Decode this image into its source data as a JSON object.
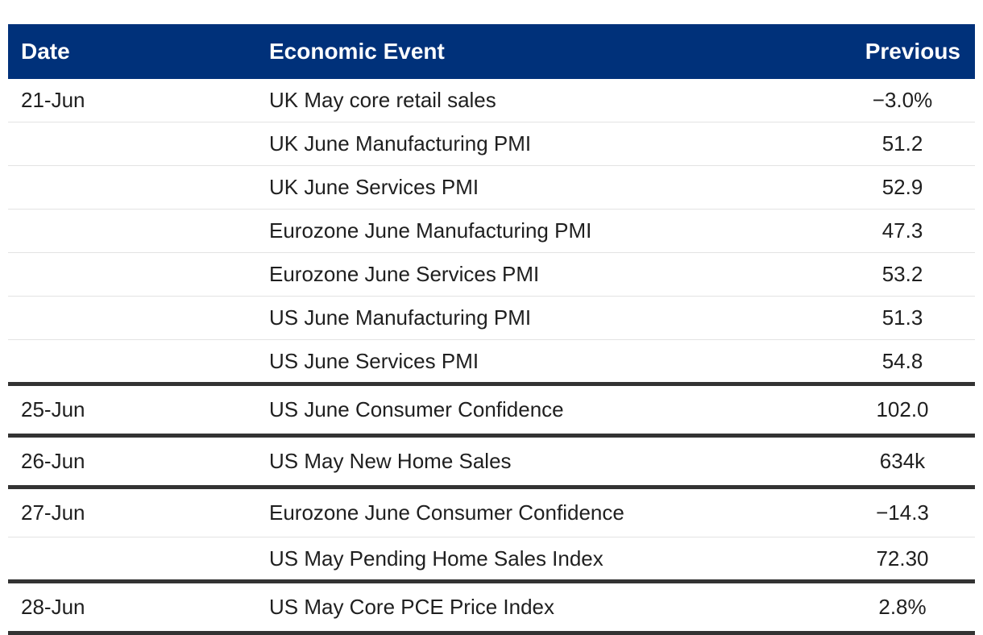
{
  "table": {
    "headers": {
      "date": "Date",
      "event": "Economic Event",
      "previous": "Previous"
    },
    "groups": [
      {
        "date": "21-Jun",
        "rows": [
          {
            "event": "UK May core retail sales",
            "previous": "−3.0%"
          },
          {
            "event": "UK June Manufacturing PMI",
            "previous": "51.2"
          },
          {
            "event": "UK June Services PMI",
            "previous": "52.9"
          },
          {
            "event": "Eurozone June Manufacturing PMI",
            "previous": "47.3"
          },
          {
            "event": "Eurozone June Services PMI",
            "previous": "53.2"
          },
          {
            "event": "US June Manufacturing PMI",
            "previous": "51.3"
          },
          {
            "event": "US June Services PMI",
            "previous": "54.8"
          }
        ]
      },
      {
        "date": "25-Jun",
        "rows": [
          {
            "event": "US June Consumer Confidence",
            "previous": "102.0"
          }
        ]
      },
      {
        "date": "26-Jun",
        "rows": [
          {
            "event": "US May New Home Sales",
            "previous": "634k"
          }
        ]
      },
      {
        "date": "27-Jun",
        "rows": [
          {
            "event": "Eurozone June Consumer Confidence",
            "previous": "−14.3"
          },
          {
            "event": "US May Pending Home Sales Index",
            "previous": "72.30"
          }
        ]
      },
      {
        "date": "28-Jun",
        "rows": [
          {
            "event": "US May Core PCE Price Index",
            "previous": "2.8%"
          }
        ]
      }
    ],
    "colors": {
      "header_bg": "#00317a",
      "header_text": "#ffffff",
      "group_divider": "#333333",
      "row_divider": "#e3e3e3"
    }
  }
}
